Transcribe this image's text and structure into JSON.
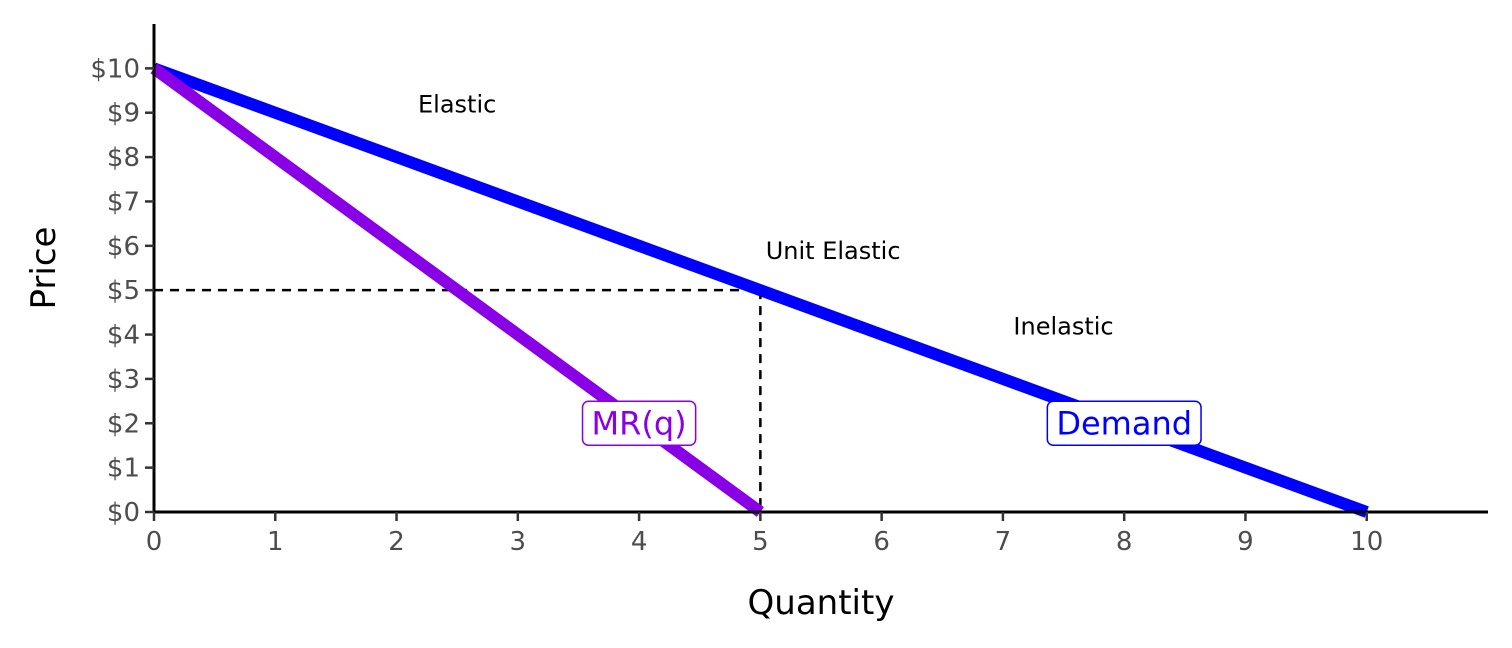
{
  "chart_data": {
    "type": "line",
    "xlabel": "Quantity",
    "ylabel": "Price",
    "xlim": [
      0,
      11
    ],
    "ylim": [
      0,
      11
    ],
    "x_ticks": [
      0,
      1,
      2,
      3,
      4,
      5,
      6,
      7,
      8,
      9,
      10
    ],
    "x_tick_labels": [
      "0",
      "1",
      "2",
      "3",
      "4",
      "5",
      "6",
      "7",
      "8",
      "9",
      "10"
    ],
    "y_ticks": [
      0,
      1,
      2,
      3,
      4,
      5,
      6,
      7,
      8,
      9,
      10
    ],
    "y_tick_labels": [
      "$0",
      "$1",
      "$2",
      "$3",
      "$4",
      "$5",
      "$6",
      "$7",
      "$8",
      "$9",
      "$10"
    ],
    "grid": false,
    "series": [
      {
        "name": "Demand",
        "color": "#0000ff",
        "x": [
          0,
          10
        ],
        "y": [
          10,
          0
        ]
      },
      {
        "name": "MR(q)",
        "color": "#8a00e6",
        "x": [
          0,
          5
        ],
        "y": [
          10,
          0
        ]
      }
    ],
    "series_labels": [
      {
        "text": "MR(q)",
        "x": 4.0,
        "y": 2.0,
        "color": "#8a00e6"
      },
      {
        "text": "Demand",
        "x": 8.0,
        "y": 2.0,
        "color": "#0000ff"
      }
    ],
    "reference_lines": [
      {
        "x": [
          0,
          5
        ],
        "y": [
          5,
          5
        ],
        "style": "dashed"
      },
      {
        "x": [
          5,
          5
        ],
        "y": [
          5,
          0
        ],
        "style": "dashed"
      }
    ],
    "annotations": [
      {
        "text": "Elastic",
        "x": 2.5,
        "y": 9.0
      },
      {
        "text": "Unit Elastic",
        "x": 5.6,
        "y": 5.7
      },
      {
        "text": "Inelastic",
        "x": 7.5,
        "y": 4.0
      }
    ]
  }
}
